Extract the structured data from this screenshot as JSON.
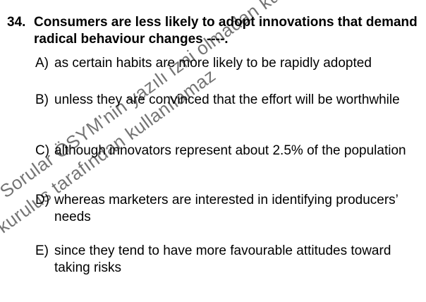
{
  "watermark": {
    "line1": "Sorular ÖSYM'nin yazılı izni olmadan kullanılamaz",
    "line2": "kurulus tarafından kullanılamaz"
  },
  "question": {
    "number": "34.",
    "stem": "Consumers are less likely to adopt innovations that demand radical behaviour changes ----.",
    "options": [
      {
        "letter": "A)",
        "text": "as certain habits are more likely to be rapidly adopted"
      },
      {
        "letter": "B)",
        "text": "unless they are convinced that the effort will be worthwhile"
      },
      {
        "letter": "C)",
        "text": "although innovators represent about 2.5% of the population"
      },
      {
        "letter": "D)",
        "text": "whereas marketers are interested in identifying producers’ needs"
      },
      {
        "letter": "E)",
        "text": "since they tend to have more favourable attitudes toward taking risks"
      }
    ]
  }
}
